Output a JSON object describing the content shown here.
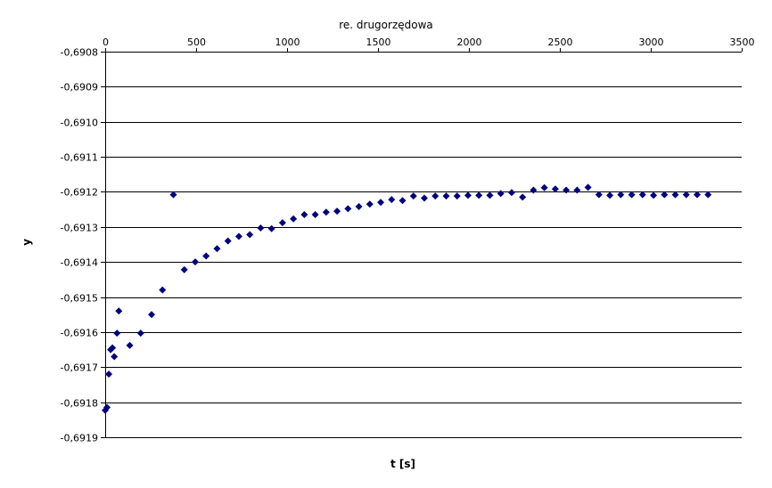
{
  "chart_data": {
    "type": "scatter",
    "title": "re. drugorzędowa",
    "xlabel": "t [s]",
    "ylabel": "y",
    "xlim": [
      0,
      3500
    ],
    "ylim": [
      -0.6919,
      -0.6908
    ],
    "grid": "horizontal",
    "legend": "none",
    "marker": "diamond",
    "marker_color": "#00007f",
    "x_ticks": [
      "0",
      "500",
      "1000",
      "1500",
      "2000",
      "2500",
      "3000",
      "3500"
    ],
    "x_tick_values": [
      0,
      500,
      1000,
      1500,
      2000,
      2500,
      3000,
      3500
    ],
    "y_ticks": [
      "-0,6908",
      "-0,6909",
      "-0,6910",
      "-0,6911",
      "-0,6912",
      "-0,6913",
      "-0,6914",
      "-0,6915",
      "-0,6916",
      "-0,6917",
      "-0,6918",
      "-0,6919"
    ],
    "y_tick_values": [
      -0.6908,
      -0.6909,
      -0.691,
      -0.6911,
      -0.6912,
      -0.6913,
      -0.6914,
      -0.6915,
      -0.6916,
      -0.6917,
      -0.6918,
      -0.6919
    ],
    "series": [
      {
        "points": [
          [
            0,
            -0.691823
          ],
          [
            10,
            -0.691815
          ],
          [
            20,
            -0.69172
          ],
          [
            30,
            -0.69165
          ],
          [
            40,
            -0.691645
          ],
          [
            50,
            -0.69167
          ],
          [
            65,
            -0.691603
          ],
          [
            75,
            -0.69154
          ],
          [
            135,
            -0.691638
          ],
          [
            195,
            -0.691603
          ],
          [
            255,
            -0.69155
          ],
          [
            315,
            -0.69148
          ],
          [
            375,
            -0.691208
          ],
          [
            435,
            -0.691422
          ],
          [
            495,
            -0.6914
          ],
          [
            555,
            -0.691383
          ],
          [
            615,
            -0.691362
          ],
          [
            675,
            -0.69134
          ],
          [
            735,
            -0.691327
          ],
          [
            795,
            -0.691322
          ],
          [
            855,
            -0.691303
          ],
          [
            915,
            -0.691305
          ],
          [
            975,
            -0.691288
          ],
          [
            1035,
            -0.691277
          ],
          [
            1095,
            -0.691265
          ],
          [
            1155,
            -0.691265
          ],
          [
            1215,
            -0.691258
          ],
          [
            1275,
            -0.691255
          ],
          [
            1335,
            -0.691248
          ],
          [
            1395,
            -0.691242
          ],
          [
            1455,
            -0.691235
          ],
          [
            1515,
            -0.69123
          ],
          [
            1575,
            -0.691222
          ],
          [
            1635,
            -0.691225
          ],
          [
            1695,
            -0.691212
          ],
          [
            1755,
            -0.691218
          ],
          [
            1815,
            -0.691212
          ],
          [
            1875,
            -0.691212
          ],
          [
            1935,
            -0.691212
          ],
          [
            1995,
            -0.69121
          ],
          [
            2055,
            -0.69121
          ],
          [
            2115,
            -0.69121
          ],
          [
            2175,
            -0.691205
          ],
          [
            2235,
            -0.691202
          ],
          [
            2295,
            -0.691215
          ],
          [
            2355,
            -0.691195
          ],
          [
            2415,
            -0.691188
          ],
          [
            2475,
            -0.691192
          ],
          [
            2535,
            -0.691195
          ],
          [
            2595,
            -0.691195
          ],
          [
            2655,
            -0.691187
          ],
          [
            2715,
            -0.691208
          ],
          [
            2775,
            -0.69121
          ],
          [
            2835,
            -0.691208
          ],
          [
            2895,
            -0.691208
          ],
          [
            2955,
            -0.691208
          ],
          [
            3015,
            -0.69121
          ],
          [
            3075,
            -0.691208
          ],
          [
            3135,
            -0.691208
          ],
          [
            3195,
            -0.691208
          ],
          [
            3255,
            -0.691208
          ],
          [
            3315,
            -0.691208
          ]
        ]
      }
    ]
  }
}
